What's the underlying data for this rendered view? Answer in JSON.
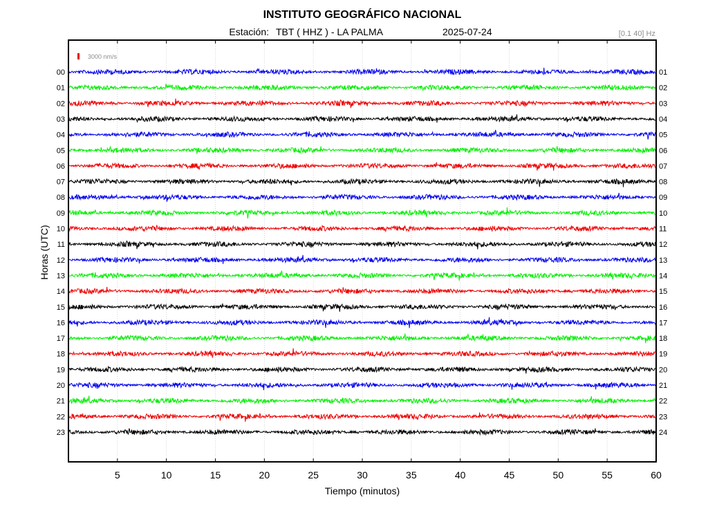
{
  "header": {
    "title": "INSTITUTO GEOGRÁFICO NACIONAL",
    "station_label": "Estación:",
    "station_value": "TBT ( HHZ ) - LA PALMA",
    "date": "2025-07-24",
    "filter_band": "[0.1 40] Hz"
  },
  "scale_bar": {
    "label": "3000 nm/s",
    "color": "#e00000"
  },
  "chart_data": {
    "type": "line",
    "title": "INSTITUTO GEOGRÁFICO NACIONAL",
    "xlabel": "Tiempo (minutos)",
    "ylabel": "Horas (UTC)",
    "xlim": [
      0,
      60
    ],
    "x_ticks": [
      "5",
      "10",
      "15",
      "20",
      "25",
      "30",
      "35",
      "40",
      "45",
      "50",
      "55",
      "60"
    ],
    "x_tick_values": [
      5,
      10,
      15,
      20,
      25,
      30,
      35,
      40,
      45,
      50,
      55,
      60
    ],
    "grid": true,
    "left_hour_labels": [
      "00",
      "01",
      "02",
      "03",
      "04",
      "05",
      "06",
      "07",
      "08",
      "09",
      "10",
      "11",
      "12",
      "13",
      "14",
      "15",
      "16",
      "17",
      "18",
      "19",
      "20",
      "21",
      "22",
      "23"
    ],
    "right_hour_labels": [
      "01",
      "02",
      "03",
      "04",
      "05",
      "06",
      "07",
      "08",
      "09",
      "10",
      "11",
      "12",
      "13",
      "14",
      "15",
      "16",
      "17",
      "18",
      "19",
      "20",
      "21",
      "22",
      "23",
      "24"
    ],
    "trace_colors": [
      "#0000ee",
      "#00ee00",
      "#ee0000",
      "#000000"
    ],
    "traces": [
      {
        "hour": "00",
        "color": "#0000ee"
      },
      {
        "hour": "01",
        "color": "#00ee00"
      },
      {
        "hour": "02",
        "color": "#ee0000"
      },
      {
        "hour": "03",
        "color": "#000000"
      },
      {
        "hour": "04",
        "color": "#0000ee"
      },
      {
        "hour": "05",
        "color": "#00ee00"
      },
      {
        "hour": "06",
        "color": "#ee0000"
      },
      {
        "hour": "07",
        "color": "#000000"
      },
      {
        "hour": "08",
        "color": "#0000ee"
      },
      {
        "hour": "09",
        "color": "#00ee00"
      },
      {
        "hour": "10",
        "color": "#ee0000"
      },
      {
        "hour": "11",
        "color": "#000000"
      },
      {
        "hour": "12",
        "color": "#0000ee"
      },
      {
        "hour": "13",
        "color": "#00ee00"
      },
      {
        "hour": "14",
        "color": "#ee0000"
      },
      {
        "hour": "15",
        "color": "#000000"
      },
      {
        "hour": "16",
        "color": "#0000ee"
      },
      {
        "hour": "17",
        "color": "#00ee00"
      },
      {
        "hour": "18",
        "color": "#ee0000"
      },
      {
        "hour": "19",
        "color": "#000000"
      },
      {
        "hour": "20",
        "color": "#0000ee"
      },
      {
        "hour": "21",
        "color": "#00ee00"
      },
      {
        "hour": "22",
        "color": "#ee0000"
      },
      {
        "hour": "23",
        "color": "#000000"
      }
    ]
  }
}
